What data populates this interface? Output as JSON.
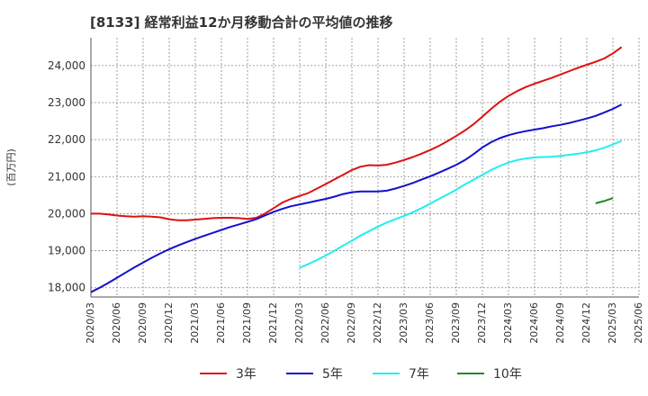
{
  "chart_data": {
    "type": "line",
    "title": "[8133]  経常利益12か月移動合計の平均値の推移",
    "ylabel": "(百万円)",
    "ylim": [
      17750,
      24750
    ],
    "yticks": [
      18000,
      19000,
      20000,
      21000,
      22000,
      23000,
      24000
    ],
    "ytick_labels": [
      "18,000",
      "19,000",
      "20,000",
      "21,000",
      "22,000",
      "23,000",
      "24,000"
    ],
    "xlim": [
      "2020/03",
      "2025/06"
    ],
    "xticks": [
      "2020/03",
      "2020/06",
      "2020/09",
      "2020/12",
      "2021/03",
      "2021/06",
      "2021/09",
      "2021/12",
      "2022/03",
      "2022/06",
      "2022/09",
      "2022/12",
      "2023/03",
      "2023/06",
      "2023/09",
      "2023/12",
      "2024/03",
      "2024/06",
      "2024/09",
      "2024/12",
      "2025/03",
      "2025/06"
    ],
    "grid": true,
    "legend_position": "bottom",
    "series": [
      {
        "name": "3年",
        "color": "#dd1111",
        "points": [
          [
            "2020/03",
            20000
          ],
          [
            "2020/04",
            20000
          ],
          [
            "2020/05",
            19980
          ],
          [
            "2020/06",
            19950
          ],
          [
            "2020/07",
            19930
          ],
          [
            "2020/08",
            19920
          ],
          [
            "2020/09",
            19930
          ],
          [
            "2020/10",
            19920
          ],
          [
            "2020/11",
            19900
          ],
          [
            "2020/12",
            19850
          ],
          [
            "2021/01",
            19820
          ],
          [
            "2021/02",
            19820
          ],
          [
            "2021/03",
            19840
          ],
          [
            "2021/04",
            19860
          ],
          [
            "2021/05",
            19880
          ],
          [
            "2021/06",
            19890
          ],
          [
            "2021/07",
            19890
          ],
          [
            "2021/08",
            19880
          ],
          [
            "2021/09",
            19860
          ],
          [
            "2021/10",
            19890
          ],
          [
            "2021/11",
            20000
          ],
          [
            "2021/12",
            20150
          ],
          [
            "2022/01",
            20300
          ],
          [
            "2022/02",
            20400
          ],
          [
            "2022/03",
            20480
          ],
          [
            "2022/04",
            20560
          ],
          [
            "2022/05",
            20680
          ],
          [
            "2022/06",
            20800
          ],
          [
            "2022/07",
            20930
          ],
          [
            "2022/08",
            21050
          ],
          [
            "2022/09",
            21180
          ],
          [
            "2022/10",
            21270
          ],
          [
            "2022/11",
            21310
          ],
          [
            "2022/12",
            21300
          ],
          [
            "2023/01",
            21320
          ],
          [
            "2023/02",
            21380
          ],
          [
            "2023/03",
            21450
          ],
          [
            "2023/04",
            21530
          ],
          [
            "2023/05",
            21620
          ],
          [
            "2023/06",
            21720
          ],
          [
            "2023/07",
            21830
          ],
          [
            "2023/08",
            21960
          ],
          [
            "2023/09",
            22100
          ],
          [
            "2023/10",
            22250
          ],
          [
            "2023/11",
            22420
          ],
          [
            "2023/12",
            22620
          ],
          [
            "2024/01",
            22830
          ],
          [
            "2024/02",
            23020
          ],
          [
            "2024/03",
            23180
          ],
          [
            "2024/04",
            23310
          ],
          [
            "2024/05",
            23420
          ],
          [
            "2024/06",
            23510
          ],
          [
            "2024/07",
            23590
          ],
          [
            "2024/08",
            23670
          ],
          [
            "2024/09",
            23760
          ],
          [
            "2024/10",
            23850
          ],
          [
            "2024/11",
            23940
          ],
          [
            "2024/12",
            24020
          ],
          [
            "2025/01",
            24100
          ],
          [
            "2025/02",
            24190
          ],
          [
            "2025/03",
            24330
          ],
          [
            "2025/04",
            24500
          ]
        ]
      },
      {
        "name": "5年",
        "color": "#1111cc",
        "points": [
          [
            "2020/03",
            17880
          ],
          [
            "2020/04",
            18000
          ],
          [
            "2020/05",
            18130
          ],
          [
            "2020/06",
            18270
          ],
          [
            "2020/07",
            18410
          ],
          [
            "2020/08",
            18550
          ],
          [
            "2020/09",
            18680
          ],
          [
            "2020/10",
            18810
          ],
          [
            "2020/11",
            18930
          ],
          [
            "2020/12",
            19040
          ],
          [
            "2021/01",
            19140
          ],
          [
            "2021/02",
            19230
          ],
          [
            "2021/03",
            19320
          ],
          [
            "2021/04",
            19400
          ],
          [
            "2021/05",
            19480
          ],
          [
            "2021/06",
            19560
          ],
          [
            "2021/07",
            19640
          ],
          [
            "2021/08",
            19710
          ],
          [
            "2021/09",
            19780
          ],
          [
            "2021/10",
            19850
          ],
          [
            "2021/11",
            19950
          ],
          [
            "2021/12",
            20050
          ],
          [
            "2022/01",
            20130
          ],
          [
            "2022/02",
            20200
          ],
          [
            "2022/03",
            20250
          ],
          [
            "2022/04",
            20300
          ],
          [
            "2022/05",
            20350
          ],
          [
            "2022/06",
            20400
          ],
          [
            "2022/07",
            20460
          ],
          [
            "2022/08",
            20530
          ],
          [
            "2022/09",
            20580
          ],
          [
            "2022/10",
            20600
          ],
          [
            "2022/11",
            20600
          ],
          [
            "2022/12",
            20600
          ],
          [
            "2023/01",
            20620
          ],
          [
            "2023/02",
            20680
          ],
          [
            "2023/03",
            20750
          ],
          [
            "2023/04",
            20830
          ],
          [
            "2023/05",
            20920
          ],
          [
            "2023/06",
            21010
          ],
          [
            "2023/07",
            21110
          ],
          [
            "2023/08",
            21210
          ],
          [
            "2023/09",
            21320
          ],
          [
            "2023/10",
            21450
          ],
          [
            "2023/11",
            21610
          ],
          [
            "2023/12",
            21790
          ],
          [
            "2024/01",
            21930
          ],
          [
            "2024/02",
            22040
          ],
          [
            "2024/03",
            22120
          ],
          [
            "2024/04",
            22180
          ],
          [
            "2024/05",
            22230
          ],
          [
            "2024/06",
            22270
          ],
          [
            "2024/07",
            22310
          ],
          [
            "2024/08",
            22360
          ],
          [
            "2024/09",
            22400
          ],
          [
            "2024/10",
            22450
          ],
          [
            "2024/11",
            22510
          ],
          [
            "2024/12",
            22570
          ],
          [
            "2025/01",
            22640
          ],
          [
            "2025/02",
            22730
          ],
          [
            "2025/03",
            22830
          ],
          [
            "2025/04",
            22950
          ]
        ]
      },
      {
        "name": "7年",
        "color": "#22eeee",
        "points": [
          [
            "2022/03",
            18540
          ],
          [
            "2022/04",
            18640
          ],
          [
            "2022/05",
            18750
          ],
          [
            "2022/06",
            18870
          ],
          [
            "2022/07",
            19000
          ],
          [
            "2022/08",
            19140
          ],
          [
            "2022/09",
            19270
          ],
          [
            "2022/10",
            19410
          ],
          [
            "2022/11",
            19530
          ],
          [
            "2022/12",
            19650
          ],
          [
            "2023/01",
            19760
          ],
          [
            "2023/02",
            19850
          ],
          [
            "2023/03",
            19940
          ],
          [
            "2023/04",
            20040
          ],
          [
            "2023/05",
            20150
          ],
          [
            "2023/06",
            20270
          ],
          [
            "2023/07",
            20400
          ],
          [
            "2023/08",
            20520
          ],
          [
            "2023/09",
            20650
          ],
          [
            "2023/10",
            20790
          ],
          [
            "2023/11",
            20920
          ],
          [
            "2023/12",
            21050
          ],
          [
            "2024/01",
            21180
          ],
          [
            "2024/02",
            21290
          ],
          [
            "2024/03",
            21380
          ],
          [
            "2024/04",
            21450
          ],
          [
            "2024/05",
            21490
          ],
          [
            "2024/06",
            21520
          ],
          [
            "2024/07",
            21530
          ],
          [
            "2024/08",
            21540
          ],
          [
            "2024/09",
            21560
          ],
          [
            "2024/10",
            21590
          ],
          [
            "2024/11",
            21620
          ],
          [
            "2024/12",
            21660
          ],
          [
            "2025/01",
            21710
          ],
          [
            "2025/02",
            21780
          ],
          [
            "2025/03",
            21870
          ],
          [
            "2025/04",
            21970
          ]
        ]
      },
      {
        "name": "10年",
        "color": "#228822",
        "points": [
          [
            "2025/01",
            20280
          ],
          [
            "2025/02",
            20340
          ],
          [
            "2025/03",
            20420
          ]
        ]
      }
    ]
  }
}
